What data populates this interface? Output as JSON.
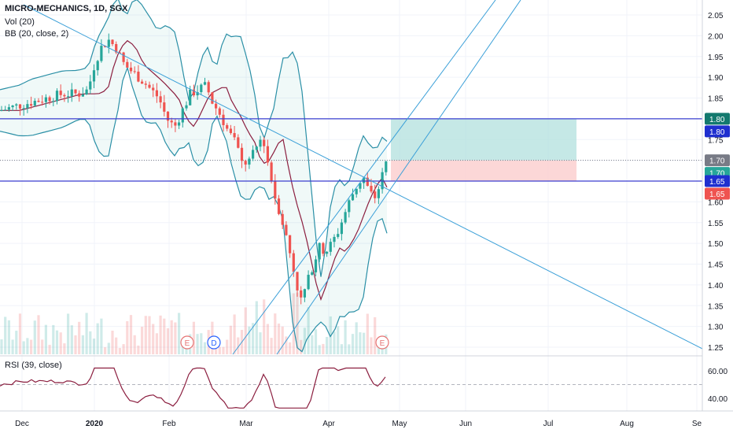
{
  "header": {
    "title": "MICRO-MECHANICS, 1D, SGX",
    "volume": "Vol (20)",
    "bb": "BB (20, close, 2)"
  },
  "rsi_panel": {
    "title": "RSI (39, close)"
  },
  "colors": {
    "up": "#26a69a",
    "down": "#ef5350",
    "bb": "#2a8fa6",
    "basis": "#8b1e3f",
    "trendline": "#3ca0d8",
    "hline": "#3b3fcf",
    "rsi": "#8b1e3f",
    "target_zone": "#b2e0dd",
    "stop_zone": "#fbd0d0"
  },
  "chart_data": {
    "type": "candlestick",
    "title": "MICRO-MECHANICS, 1D, SGX",
    "x_axis": {
      "tick_labels": [
        "Dec",
        "2020",
        "Feb",
        "Mar",
        "Apr",
        "May",
        "Jun",
        "Jul",
        "Aug",
        "Se"
      ]
    },
    "y_axis": {
      "ylim": [
        1.22,
        2.08
      ],
      "tick_labels": [
        "2.05",
        "2.00",
        "1.95",
        "1.90",
        "1.85",
        "1.80",
        "1.75",
        "1.70",
        "1.65",
        "1.60",
        "1.55",
        "1.50",
        "1.45",
        "1.40",
        "1.35",
        "1.30",
        "1.25"
      ]
    },
    "price_badges": [
      {
        "label": "1.80",
        "value": 1.8,
        "color": "#13796e"
      },
      {
        "label": "1.80",
        "value": 1.8,
        "color": "#1f2fcf",
        "offset": 1
      },
      {
        "label": "1.70",
        "value": 1.7,
        "color": "#787b86"
      },
      {
        "label": "1.70",
        "value": 1.7,
        "color": "#26a69a",
        "offset": 1
      },
      {
        "label": "1.65",
        "value": 1.65,
        "color": "#1f2fcf"
      },
      {
        "label": "1.65",
        "value": 1.65,
        "color": "#ef5350",
        "offset": 1
      }
    ],
    "horizontal_lines": [
      1.8,
      1.65
    ],
    "position_tool": {
      "entry": 1.7,
      "target": 1.8,
      "stop": 1.65
    },
    "event_markers": [
      "E",
      "D",
      "E"
    ],
    "rsi": {
      "title": "RSI (39, close)",
      "tick_labels": [
        "60.00",
        "40.00"
      ],
      "ylim": [
        32,
        64
      ],
      "dashed_level": 50
    },
    "series": [
      {
        "name": "Vol (20)"
      },
      {
        "name": "BB (20, close, 2)"
      }
    ]
  }
}
